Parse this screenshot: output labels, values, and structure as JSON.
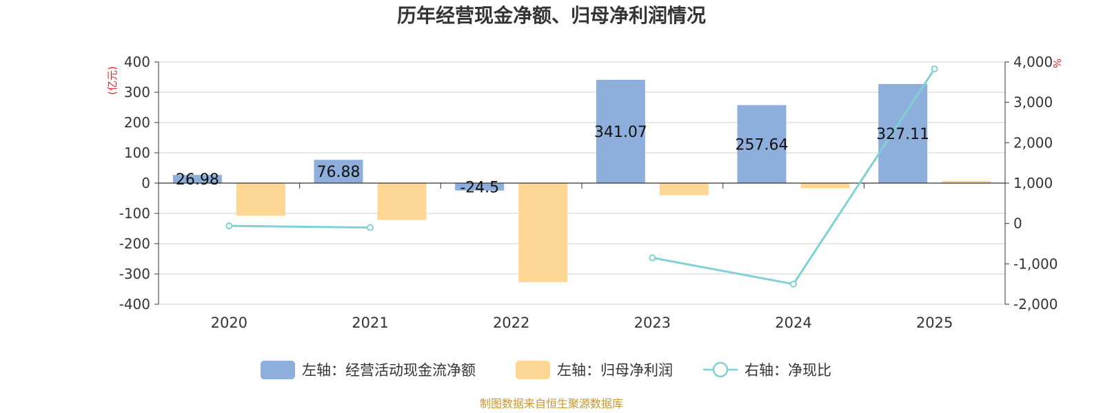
{
  "chart_data": {
    "type": "bar+line",
    "title": "历年经营现金净额、归母净利润情况",
    "categories": [
      "2020",
      "2021",
      "2022",
      "2023",
      "2024",
      "2025"
    ],
    "left_axis": {
      "unit": "(亿元)",
      "ylim": [
        -400,
        400
      ],
      "ticks": [
        "-400",
        "-300",
        "-200",
        "-100",
        "0",
        "100",
        "200",
        "300",
        "400"
      ]
    },
    "right_axis": {
      "unit": "%",
      "ylim": [
        -2000,
        4000
      ],
      "ticks": [
        "-2,000",
        "-1,000",
        "0",
        "1,000",
        "2,000",
        "3,000",
        "4,000"
      ]
    },
    "series": [
      {
        "name": "左轴：经营活动现金流净额",
        "axis": "left",
        "type": "bar",
        "color": "#8eaedb",
        "values": [
          26.98,
          76.88,
          -24.5,
          341.07,
          257.64,
          327.11
        ],
        "labels": [
          "26.98",
          "76.88",
          "-24.5",
          "341.07",
          "257.64",
          "327.11"
        ]
      },
      {
        "name": "左轴：归母净利润",
        "axis": "left",
        "type": "bar",
        "color": "#fed795",
        "values": [
          -108,
          -122,
          -327,
          -40,
          -17,
          7
        ]
      },
      {
        "name": "右轴：净现比",
        "axis": "right",
        "type": "line",
        "color": "#7fd1d4",
        "values": [
          -60,
          -100,
          null,
          -850,
          -1500,
          3830
        ]
      }
    ],
    "legend_position": "bottom",
    "source": "制图数据来自恒生聚源数据库"
  }
}
